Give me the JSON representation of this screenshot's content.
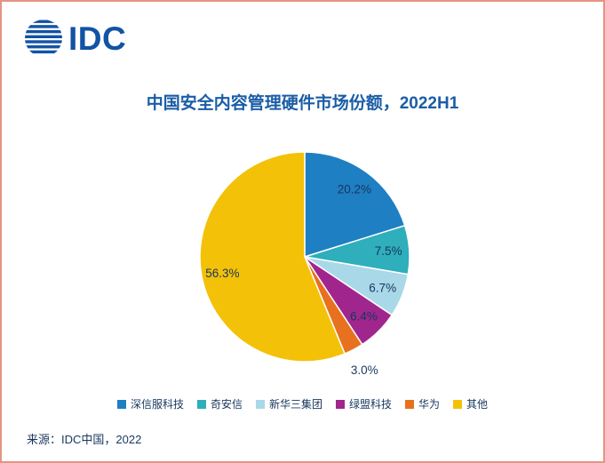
{
  "logo": {
    "text": "IDC"
  },
  "theme": {
    "logo_color": "#1253A4",
    "title_color": "#1A5DA6",
    "text_color": "#17375E",
    "data_label_color": "#17375E",
    "page_border_color": "#E59482",
    "background": "#FFFFFF"
  },
  "chart_data": {
    "type": "pie",
    "title": "中国安全内容管理硬件市场份额，2022H1",
    "start_angle_deg": 0,
    "direction": "clockwise",
    "legend_position": "bottom",
    "data_labels_shown": true,
    "series": [
      {
        "name": "深信服科技",
        "value": 20.2,
        "label": "20.2%",
        "color": "#1E7FC2"
      },
      {
        "name": "奇安信",
        "value": 7.5,
        "label": "7.5%",
        "color": "#2FAEBB"
      },
      {
        "name": "新华三集团",
        "value": 6.7,
        "label": "6.7%",
        "color": "#A9D8E8"
      },
      {
        "name": "绿盟科技",
        "value": 6.4,
        "label": "6.4%",
        "color": "#A0268E"
      },
      {
        "name": "华为",
        "value": 3.0,
        "label": "3.0%",
        "color": "#E8711F"
      },
      {
        "name": "其他",
        "value": 56.3,
        "label": "56.3%",
        "color": "#F3C108"
      }
    ]
  },
  "source": {
    "text": "来源：IDC中国，2022"
  }
}
